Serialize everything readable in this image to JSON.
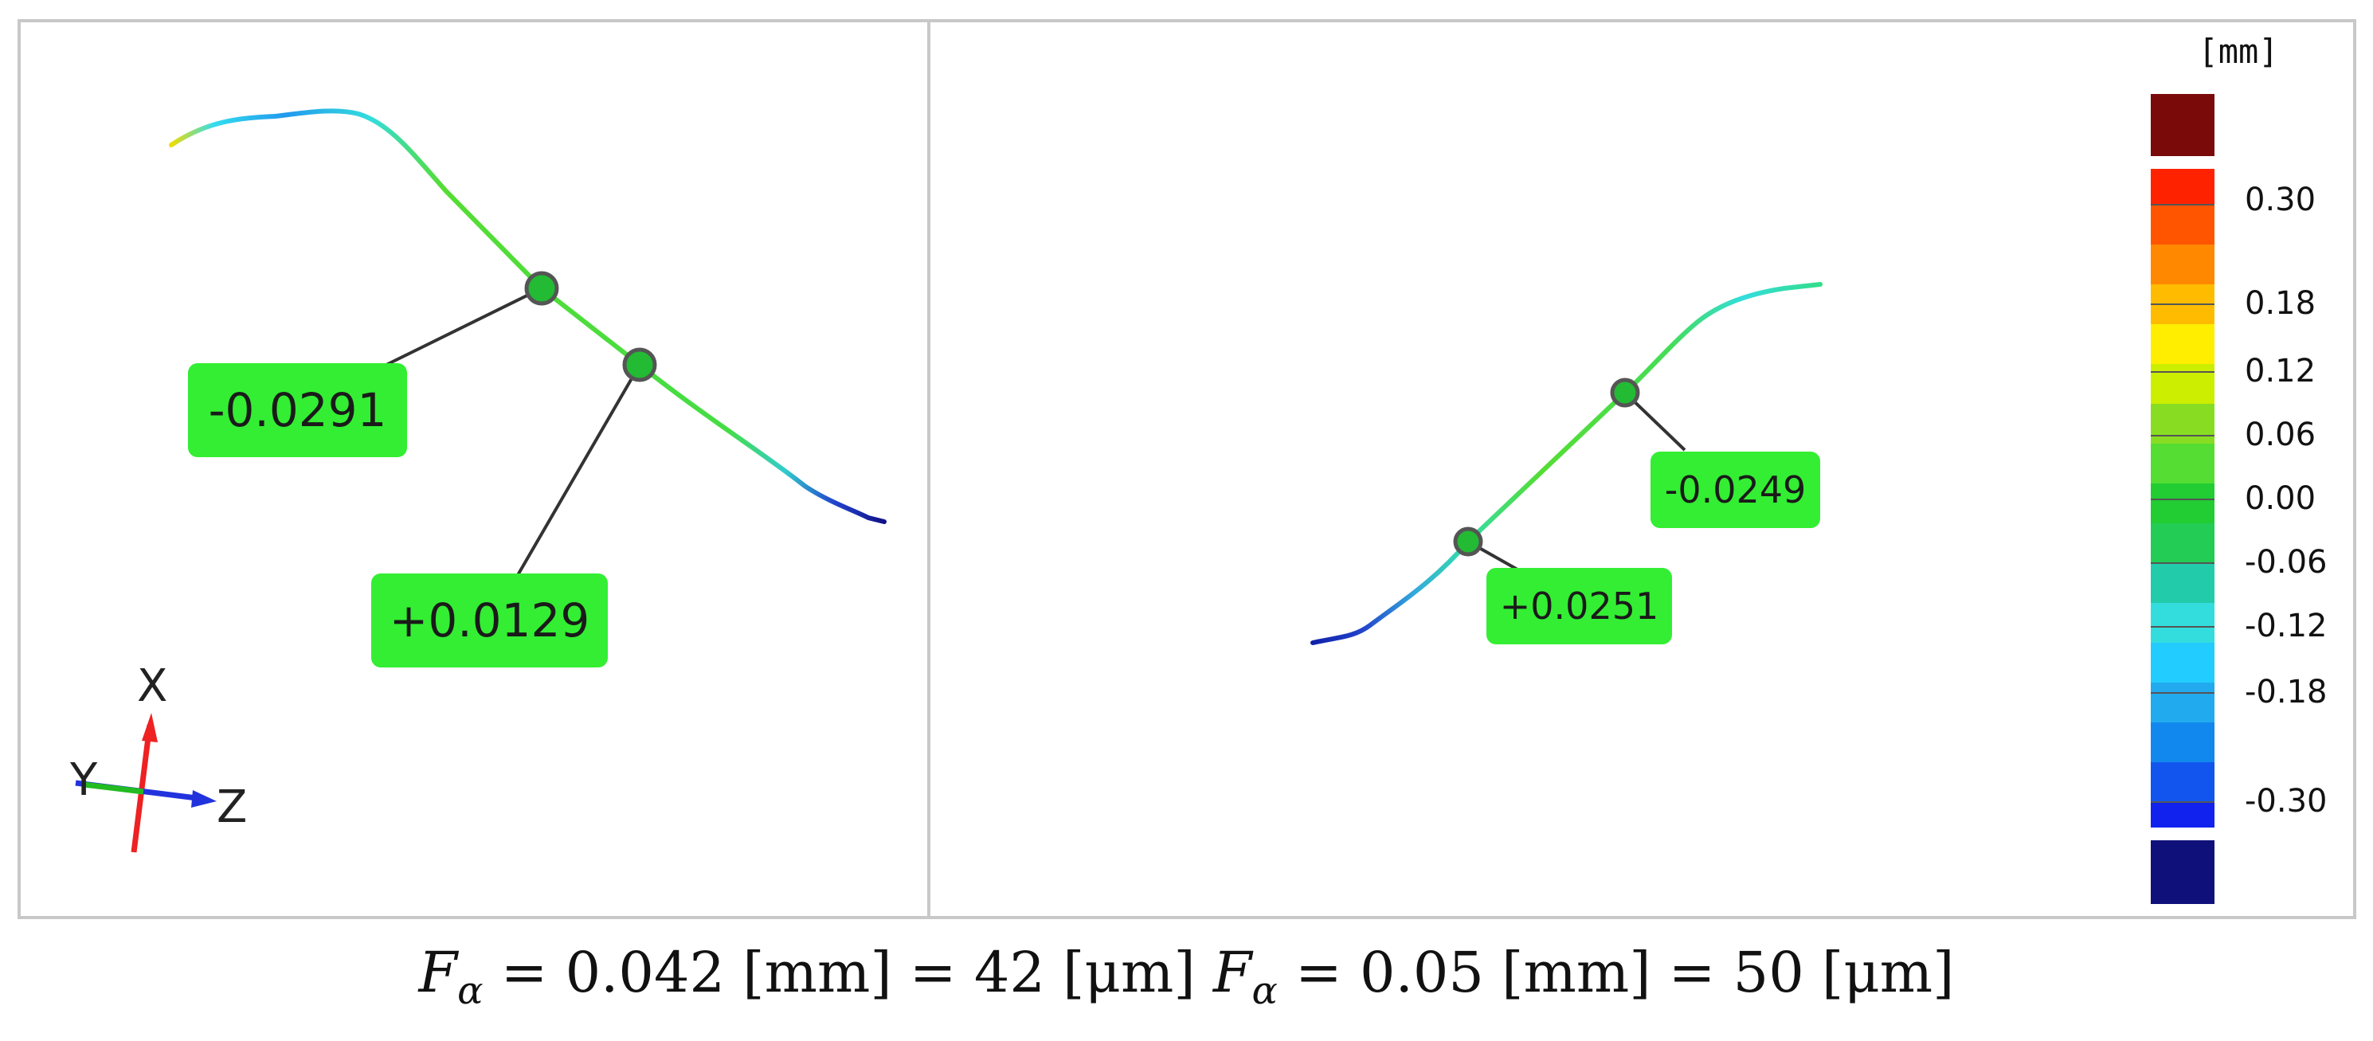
{
  "left_view": {
    "labels": [
      {
        "name": "left-deviation-label-top",
        "text": "-0.0291"
      },
      {
        "name": "left-deviation-label-bottom",
        "text": "+0.0129"
      }
    ],
    "triad": {
      "x": "X",
      "y": "Y",
      "z": "Z",
      "x_color": "#ee2222",
      "y_color": "#22bb22",
      "z_color": "#2233dd"
    }
  },
  "right_view": {
    "labels": [
      {
        "name": "right-deviation-label-top",
        "text": "-0.0249"
      },
      {
        "name": "right-deviation-label-bottom",
        "text": "+0.0251"
      }
    ]
  },
  "legend": {
    "unit": "[mm]",
    "ticks": [
      "0.30",
      "0.18",
      "0.12",
      "0.06",
      "0.00",
      "-0.06",
      "-0.12",
      "-0.18",
      "-0.30"
    ],
    "colors": {
      "over": "#7a0a0a",
      "under": "#10107a",
      "label_bg": "#33ee33",
      "frame": "#c8c8c8"
    }
  },
  "caption": {
    "left": {
      "symbol": "F",
      "sub": "α",
      "text": " = 0.042 [mm] = 42 [μm]"
    },
    "right": {
      "symbol": "F",
      "sub": "α",
      "text": " = 0.05 [mm] = 50 [μm]"
    }
  }
}
